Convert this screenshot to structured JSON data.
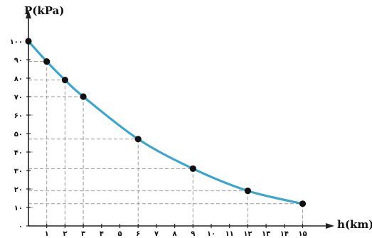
{
  "chart_data": {
    "type": "line",
    "ylabel": "P(kPa)",
    "xlabel": "h(km)",
    "xlim": [
      0,
      16
    ],
    "ylim": [
      0,
      100
    ],
    "x_ticks": [
      1,
      2,
      3,
      4,
      5,
      6,
      7,
      8,
      9,
      10,
      11,
      12,
      13,
      14,
      15
    ],
    "x_tick_labels": [
      "۱",
      "۲",
      "۳",
      "۴",
      "۵",
      "۶",
      "۷",
      "۸",
      "۹",
      "۱۰",
      "۱۱",
      "۱۲",
      "۱۳",
      "۱۴",
      "۱۵"
    ],
    "y_ticks": [
      0,
      10,
      20,
      30,
      40,
      50,
      60,
      70,
      80,
      90,
      100
    ],
    "y_tick_labels": [
      "۰",
      "۱۰",
      "۲۰",
      "۳۰",
      "۴۰",
      "۵۰",
      "۶۰",
      "۷۰",
      "۸۰",
      "۹۰",
      "۱۰۰"
    ],
    "points": [
      {
        "x": 0,
        "y": 100
      },
      {
        "x": 1,
        "y": 89
      },
      {
        "x": 2,
        "y": 79
      },
      {
        "x": 3,
        "y": 70
      },
      {
        "x": 6,
        "y": 47
      },
      {
        "x": 9,
        "y": 31
      },
      {
        "x": 12,
        "y": 19
      },
      {
        "x": 15,
        "y": 12
      }
    ],
    "grid": "dashed guide lines from points to axes",
    "colors": {
      "curve": "#3aa6cf",
      "points": "#111111",
      "axis": "#222222",
      "guides": "#9a9a9a"
    }
  }
}
